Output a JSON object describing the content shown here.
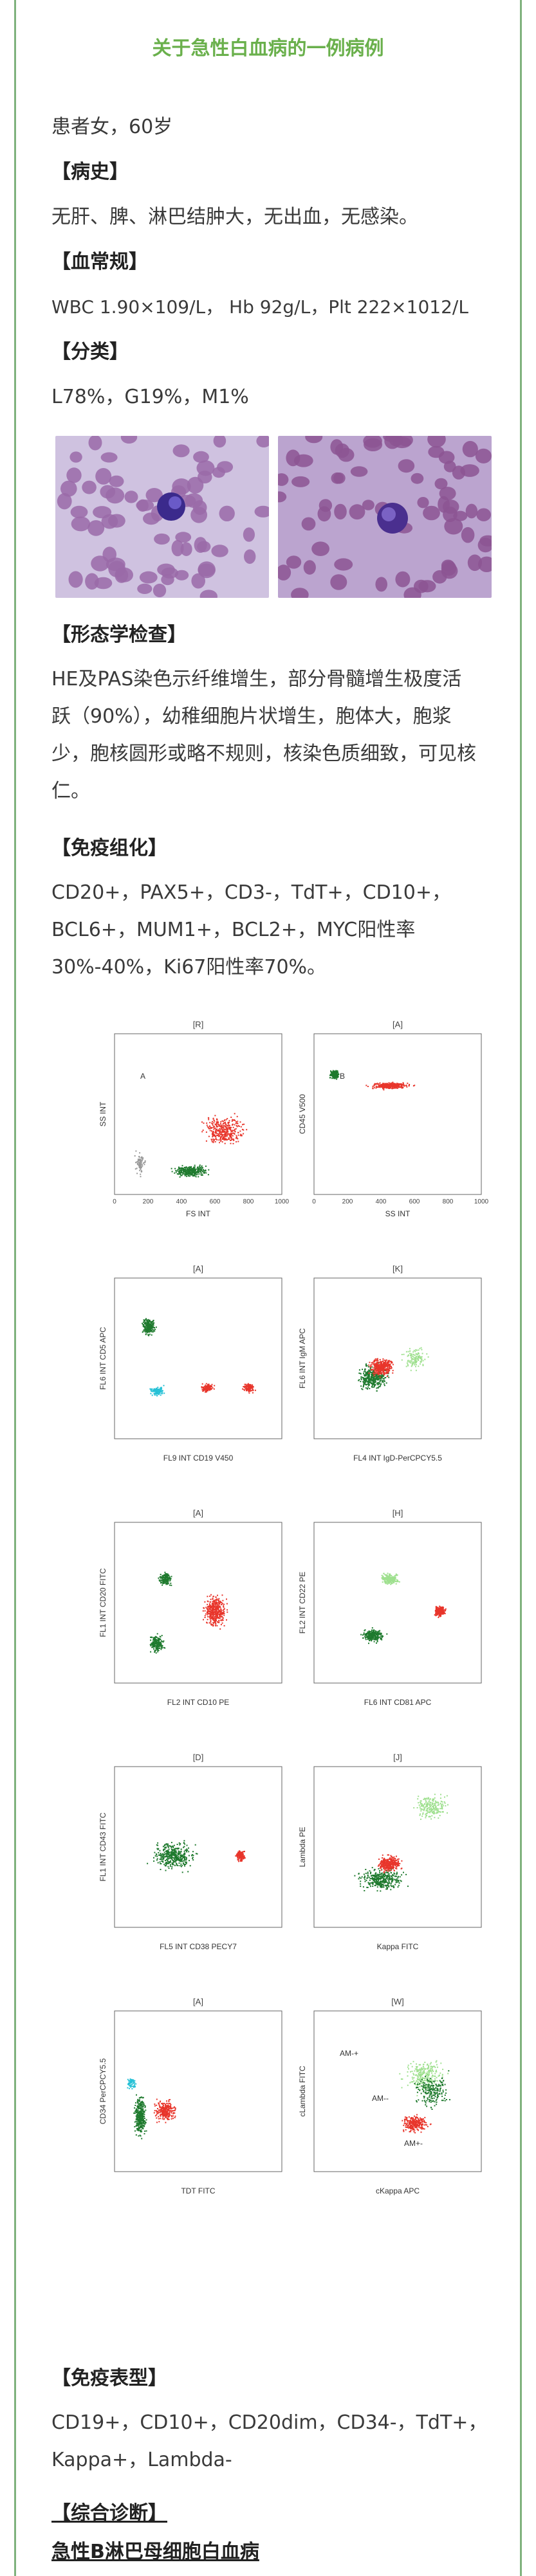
{
  "title": "关于急性白血病的一例病例",
  "patient": "患者女，60岁",
  "history": {
    "heading": "【病史】",
    "text": "无肝、脾、淋巴结肿大，无出血，无感染。"
  },
  "blood": {
    "heading": "【血常规】",
    "text": "WBC 1.90×109/L， Hb 92g/L，Plt 222×1012/L"
  },
  "classification": {
    "heading": "【分类】",
    "text": "L78%，G19%，M1%"
  },
  "morphology": {
    "heading": "【形态学检查】",
    "lines": [
      "HE及PAS染色示纤维增生，部分骨髓增生极度活",
      "跃（90%），幼稚细胞片状增生，胞体大，胞浆",
      "少，胞核圆形或略不规则，核染色质细致，可见核",
      "仁。"
    ]
  },
  "ihc": {
    "heading": "【免疫组化】",
    "lines": [
      "CD20+，PAX5+，CD3-，TdT+，CD10+，",
      "BCL6+，MUM1+，BCL2+，MYC阳性率",
      "30%-40%，Ki67阳性率70%。"
    ]
  },
  "flow": {
    "panels": [
      {
        "gate": "[R]",
        "x": "FS INT",
        "y": "SS INT",
        "labels": [
          "A"
        ],
        "ticks": [
          "0",
          "200",
          "400",
          "600",
          "800",
          "1000"
        ]
      },
      {
        "gate": "[A]",
        "x": "SS INT",
        "y": "CD45 V500",
        "labels": [
          "B"
        ],
        "ticks": [
          "0",
          "200",
          "400",
          "600",
          "800",
          "1000"
        ]
      },
      {
        "gate": "[A]",
        "x": "FL9 INT CD19 V450",
        "y": "FL6 INT CD5 APC",
        "labels": []
      },
      {
        "gate": "[K]",
        "x": "FL4 INT IgD-PerCPCY5.5",
        "y": "FL6 INT IgM APC",
        "labels": []
      },
      {
        "gate": "[A]",
        "x": "FL2 INT CD10 PE",
        "y": "FL1 INT CD20 FITC",
        "labels": []
      },
      {
        "gate": "[H]",
        "x": "FL6 INT CD81 APC",
        "y": "FL2 INT CD22 PE",
        "labels": []
      },
      {
        "gate": "[D]",
        "x": "FL5 INT CD38 PECY7",
        "y": "FL1 INT CD43 FITC",
        "labels": []
      },
      {
        "gate": "[J]",
        "x": "Kappa FITC",
        "y": "Lambda PE",
        "labels": []
      },
      {
        "gate": "[A]",
        "x": "TDT FITC",
        "y": "CD34 PerCPCY5.5",
        "labels": []
      },
      {
        "gate": "[W]",
        "x": "cKappa APC",
        "y": "cLambda FITC",
        "labels": [
          "AM-+",
          "AM--",
          "AM+-"
        ]
      }
    ]
  },
  "phenotype": {
    "heading": "【免疫表型】",
    "lines": [
      "CD19+，CD10+，CD20dim，CD34-，TdT+，",
      "Kappa+，Lambda-"
    ]
  },
  "diagnosis": {
    "heading": "【综合诊断】",
    "text": "急性B淋巴母细胞白血病"
  },
  "colors": {
    "accent": "#6ab04c",
    "frame": "#7fb27d",
    "red": "#e8352b",
    "green": "#1f7a2e",
    "cyan": "#27c1d6"
  }
}
